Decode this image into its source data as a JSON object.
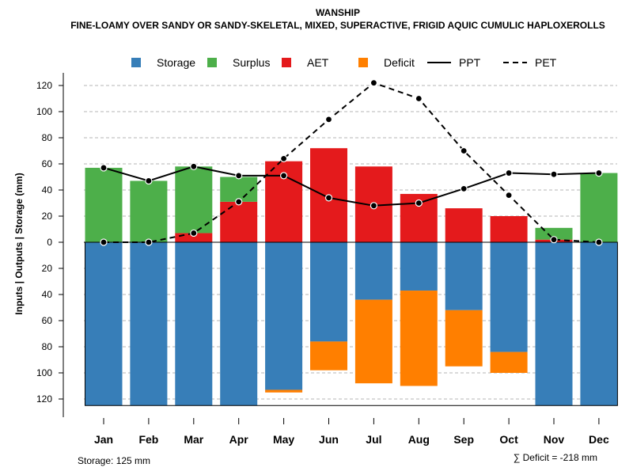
{
  "chart_data": {
    "type": "bar",
    "title": "WANSHIP",
    "subtitle": "FINE-LOAMY OVER SANDY OR SANDY-SKELETAL, MIXED, SUPERACTIVE, FRIGID AQUIC CUMULIC HAPLOXEROLLS",
    "ylabel": "Inputs | Outputs | Storage    (mm)",
    "ylim": [
      -125,
      130
    ],
    "yticks": [
      120,
      100,
      80,
      60,
      40,
      20,
      0,
      -20,
      -40,
      -60,
      -80,
      -100,
      -120
    ],
    "ytick_labels": [
      "120",
      "100",
      "80",
      "60",
      "40",
      "20",
      "0",
      "20",
      "40",
      "60",
      "80",
      "100",
      "120"
    ],
    "categories": [
      "Jan",
      "Feb",
      "Mar",
      "Apr",
      "May",
      "Jun",
      "Jul",
      "Aug",
      "Sep",
      "Oct",
      "Nov",
      "Dec"
    ],
    "legend": [
      {
        "label": "Storage",
        "kind": "box",
        "color": "#377eb8"
      },
      {
        "label": "Surplus",
        "kind": "box",
        "color": "#4daf4a"
      },
      {
        "label": "AET",
        "kind": "box",
        "color": "#e41a1c"
      },
      {
        "label": "Deficit",
        "kind": "box",
        "color": "#ff7f00"
      },
      {
        "label": "PPT",
        "kind": "solid",
        "color": "#000000"
      },
      {
        "label": "PET",
        "kind": "dashed",
        "color": "#000000"
      }
    ],
    "series": [
      {
        "name": "AET",
        "color": "#e41a1c",
        "values": [
          0,
          0,
          7,
          31,
          62,
          72,
          58,
          37,
          26,
          20,
          2,
          0
        ]
      },
      {
        "name": "Surplus",
        "color": "#4daf4a",
        "values": [
          57,
          47,
          51,
          19,
          0,
          0,
          0,
          0,
          0,
          0,
          9,
          53
        ]
      },
      {
        "name": "Storage",
        "color": "#377eb8",
        "values": [
          125,
          125,
          125,
          125,
          113,
          76,
          44,
          37,
          52,
          84,
          125,
          125
        ]
      },
      {
        "name": "Deficit",
        "color": "#ff7f00",
        "values": [
          0,
          0,
          0,
          0,
          2,
          22,
          64,
          73,
          43,
          16,
          0,
          0
        ]
      },
      {
        "name": "PPT",
        "color": "#000000",
        "values": [
          57,
          47,
          58,
          51,
          51,
          34,
          28,
          30,
          41,
          53,
          52,
          53
        ]
      },
      {
        "name": "PET",
        "color": "#000000",
        "values": [
          0,
          0,
          7,
          31,
          64,
          94,
          122,
          110,
          70,
          36,
          2,
          0
        ]
      }
    ],
    "storage_capacity_text": "Storage: 125 mm",
    "deficit_total_text": "∑ Deficit = -218 mm"
  }
}
